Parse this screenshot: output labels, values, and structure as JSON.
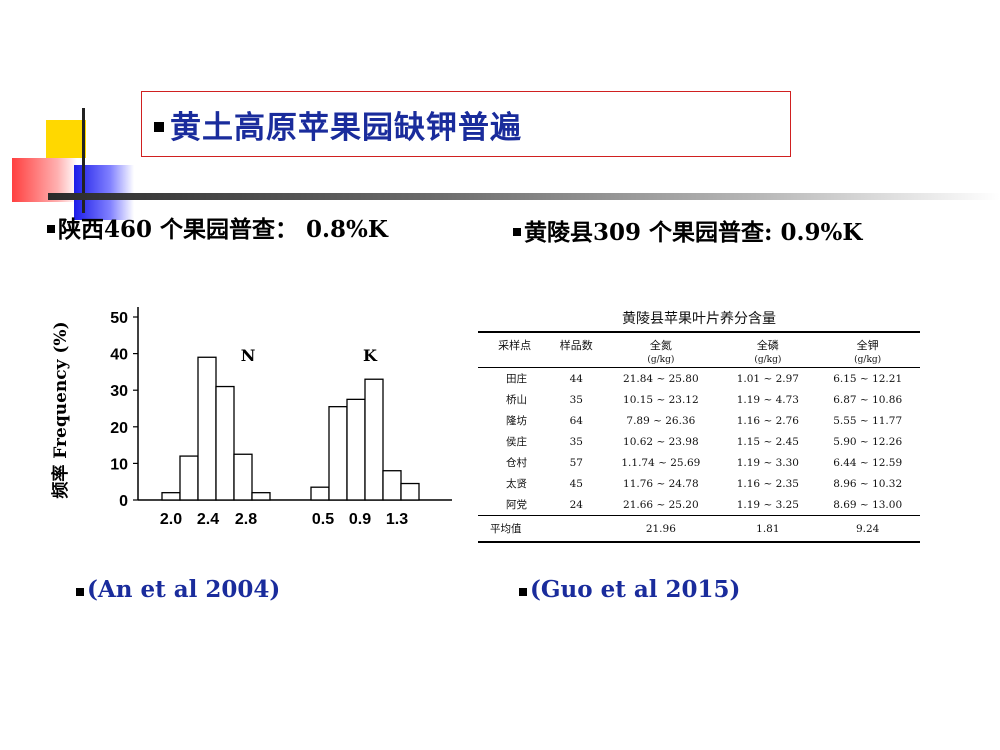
{
  "title": "黄土高原苹果园缺钾普遍",
  "left_heading": "陕西460 个果园普查： 0.8%K",
  "right_heading": "黄陵县309 个果园普查: 0.9%K",
  "left_citation": "(An et al 2004)",
  "right_citation": "(Guo et al 2015)",
  "chart_data": {
    "type": "bar",
    "ylabel": "频率 Frequency (%)",
    "yticks": [
      "0",
      "10",
      "20",
      "30",
      "40",
      "50"
    ],
    "ylim": [
      0,
      50
    ],
    "series": [
      {
        "name": "N",
        "x_tick_labels": [
          "2.0",
          "2.4",
          "2.8"
        ],
        "values": [
          2,
          12,
          39,
          31,
          12.5,
          2
        ]
      },
      {
        "name": "K",
        "x_tick_labels": [
          "0.5",
          "0.9",
          "1.3"
        ],
        "values": [
          3.5,
          25.5,
          27.5,
          33,
          8,
          4.5
        ]
      }
    ]
  },
  "table": {
    "title": "黄陵县苹果叶片养分含量",
    "headers": [
      "采样点",
      "样品数",
      "全氮",
      "全磷",
      "全钾"
    ],
    "units": [
      "",
      "",
      "(g/kg)",
      "(g/kg)",
      "(g/kg)"
    ],
    "rows": [
      [
        "田庄",
        "44",
        "21.84 ~ 25.80",
        "1.01 ~ 2.97",
        "6.15 ~ 12.21"
      ],
      [
        "桥山",
        "35",
        "10.15 ~ 23.12",
        "1.19 ~ 4.73",
        "6.87 ~ 10.86"
      ],
      [
        "隆坊",
        "64",
        "7.89 ~ 26.36",
        "1.16 ~ 2.76",
        "5.55 ~ 11.77"
      ],
      [
        "侯庄",
        "35",
        "10.62 ~ 23.98",
        "1.15 ~ 2.45",
        "5.90 ~ 12.26"
      ],
      [
        "仓村",
        "57",
        "1.1.74 ~ 25.69",
        "1.19 ~ 3.30",
        "6.44 ~ 12.59"
      ],
      [
        "太贤",
        "45",
        "11.76 ~ 24.78",
        "1.16 ~ 2.35",
        "8.96 ~ 10.32"
      ],
      [
        "阿党",
        "24",
        "21.66 ~ 25.20",
        "1.19 ~ 3.25",
        "8.69 ~ 13.00"
      ]
    ],
    "average": [
      "平均值",
      "",
      "21.96",
      "1.81",
      "9.24"
    ]
  }
}
